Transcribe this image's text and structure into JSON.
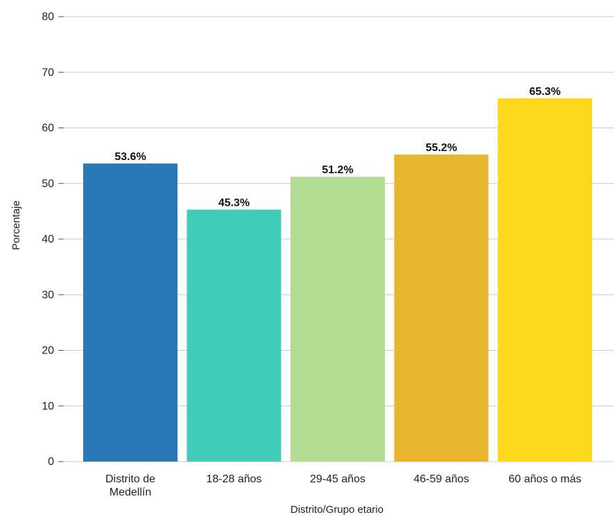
{
  "chart_data": {
    "type": "bar",
    "title": "",
    "xlabel": "Distrito/Grupo etario",
    "ylabel": "Porcentaje",
    "ylim": [
      0,
      80
    ],
    "yticks": [
      0,
      10,
      20,
      30,
      40,
      50,
      60,
      70,
      80
    ],
    "grid": "horizontal",
    "legend": "none",
    "categories": [
      [
        "Distrito de",
        "Medellín"
      ],
      [
        "18-28 años"
      ],
      [
        "29-45 años"
      ],
      [
        "46-59 años"
      ],
      [
        "60 años o más"
      ]
    ],
    "values": [
      53.6,
      45.3,
      51.2,
      55.2,
      65.3
    ],
    "value_labels": [
      "53.6%",
      "45.3%",
      "51.2%",
      "55.2%",
      "65.3%"
    ],
    "colors": [
      "#2a7ab8",
      "#41cbb8",
      "#b3dc92",
      "#e8b52c",
      "#fdd91d"
    ],
    "grid_color": "#c8c8c8",
    "axis_color": "#555555"
  }
}
